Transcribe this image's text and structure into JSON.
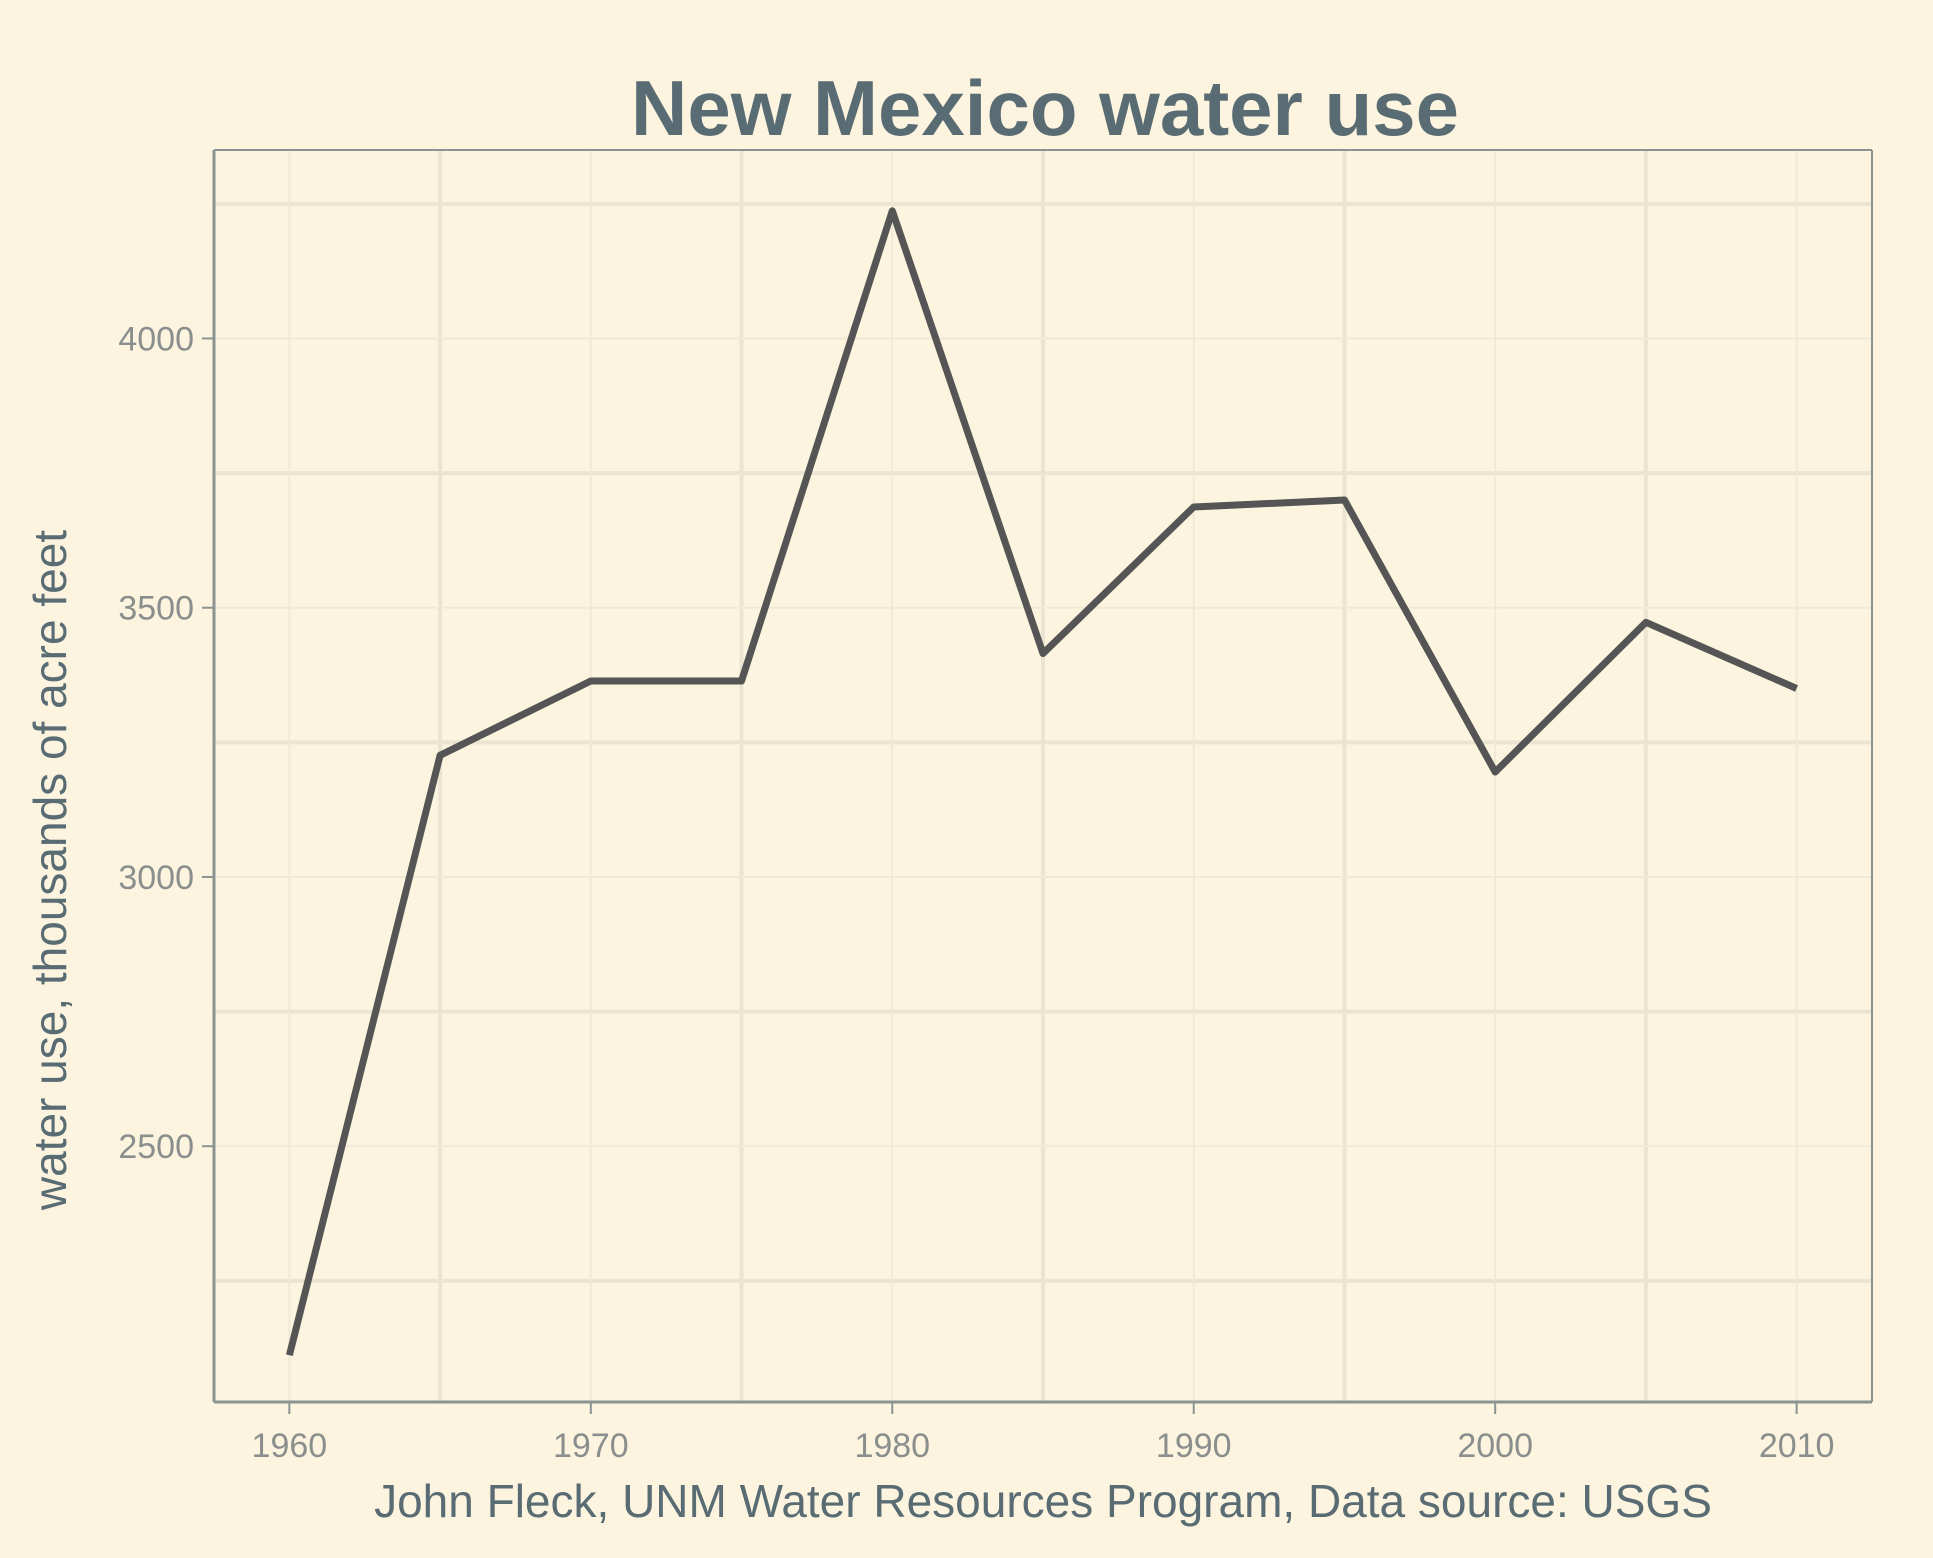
{
  "chart_data": {
    "type": "line",
    "title": "New Mexico water use",
    "xlabel": "John Fleck, UNM Water Resources Program, Data source: USGS",
    "ylabel": "water use, thousands of acre feet",
    "x": [
      1960,
      1965,
      1970,
      1975,
      1980,
      1985,
      1990,
      1995,
      2000,
      2005,
      2010
    ],
    "series": [
      {
        "values": [
          2112,
          3226,
          3364,
          3364,
          4237,
          3415,
          3687,
          3700,
          3195,
          3473,
          3350
        ]
      }
    ],
    "xlim": [
      1957.5,
      2012.5
    ],
    "ylim": [
      2025,
      4350
    ],
    "x_ticks": [
      1960,
      1970,
      1980,
      1990,
      2000,
      2010
    ],
    "y_ticks": [
      2500,
      3000,
      3500,
      4000
    ],
    "grid": true,
    "colors": {
      "background": "#fcf4df",
      "line": "#555555",
      "grid_major": "#ebe4d2",
      "grid_minor": "#f0e9d6",
      "axis": "#8a9391",
      "title": "#596b73",
      "tick_label": "#8a8f8d"
    }
  }
}
